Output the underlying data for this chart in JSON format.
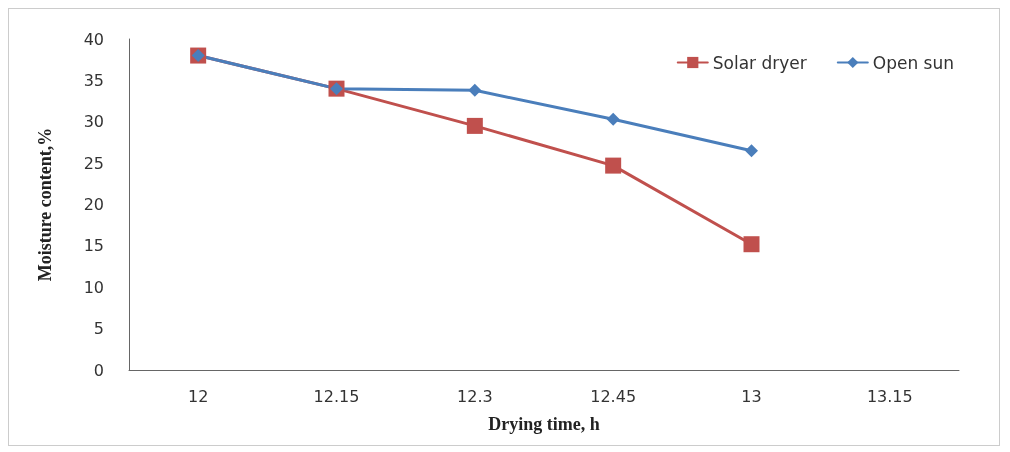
{
  "chart_data": {
    "type": "line",
    "xlabel": "Drying time, h",
    "ylabel": "Moisture content,%",
    "categories": [
      "12",
      "12.15",
      "12.3",
      "12.45",
      "13",
      "13.15"
    ],
    "series": [
      {
        "name": "Solar dryer",
        "color": "#c0504d",
        "marker": "square",
        "values": [
          38,
          34,
          29.5,
          24.7,
          15.2,
          null
        ]
      },
      {
        "name": "Open sun",
        "color": "#4a7ebb",
        "marker": "diamond",
        "values": [
          38,
          34,
          33.8,
          30.3,
          26.5,
          null
        ]
      }
    ],
    "ylim": [
      0,
      40
    ],
    "yticks": [
      0,
      5,
      10,
      15,
      20,
      25,
      30,
      35,
      40
    ],
    "grid": false,
    "legend": "top right",
    "line_style": "solid"
  }
}
